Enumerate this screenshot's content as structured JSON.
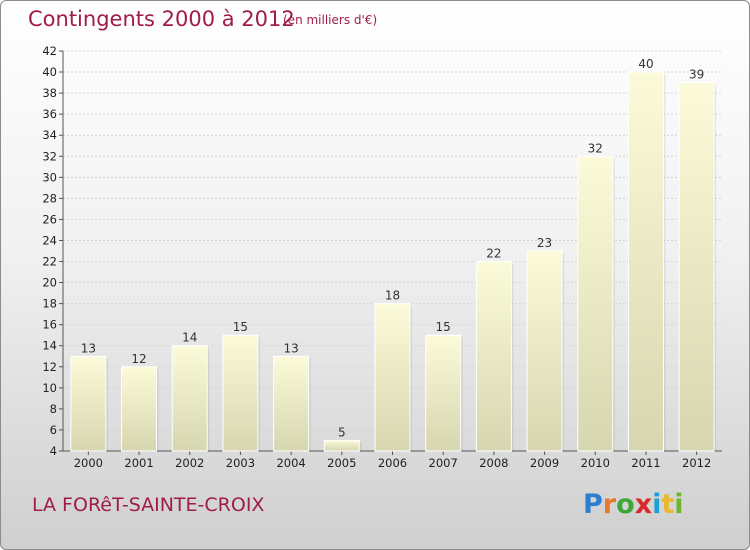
{
  "header": {
    "title": "Contingents 2000 à 2012",
    "unit": "(en milliers d'€)"
  },
  "footer": {
    "commune": "LA FORêT-SAINTE-CROIX",
    "logo": {
      "letters": [
        "P",
        "r",
        "o",
        "x",
        "i",
        "t",
        "i"
      ],
      "colors": [
        "#2a7fd0",
        "#e8792c",
        "#3fa637",
        "#d92a2a",
        "#1f9fd8",
        "#e8b82a",
        "#6fb62a"
      ]
    }
  },
  "chart_data": {
    "type": "bar",
    "title": "Contingents 2000 à 2012",
    "categories": [
      "2000",
      "2001",
      "2002",
      "2003",
      "2004",
      "2005",
      "2006",
      "2007",
      "2008",
      "2009",
      "2010",
      "2011",
      "2012"
    ],
    "values": [
      13,
      12,
      14,
      15,
      13,
      5,
      18,
      15,
      22,
      23,
      32,
      40,
      39
    ],
    "ylim": [
      4,
      42
    ],
    "yticks": [
      4,
      6,
      8,
      10,
      12,
      14,
      16,
      18,
      20,
      22,
      24,
      26,
      28,
      30,
      32,
      34,
      36,
      38,
      40,
      42
    ],
    "grid": true,
    "bar_color_top": "#fbfbd9",
    "bar_color_bottom": "#d6d6b0"
  }
}
